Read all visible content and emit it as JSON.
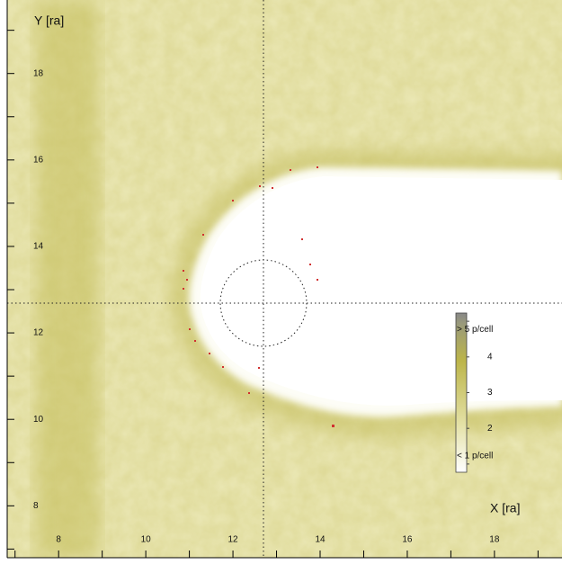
{
  "chart_data": {
    "type": "heatmap",
    "xlabel": "X [ra]",
    "ylabel": "Y [ra]",
    "xlim": [
      6.82,
      19.55
    ],
    "ylim": [
      6.8,
      19.7
    ],
    "xticks": [
      8,
      10,
      12,
      14,
      16,
      18
    ],
    "yticks": [
      8,
      10,
      12,
      14,
      16,
      18
    ],
    "x_minor_ticks": [
      7,
      9,
      11,
      13,
      15,
      17,
      19
    ],
    "y_minor_ticks": [
      7,
      9,
      11,
      13,
      15,
      17,
      19
    ],
    "colorbar": {
      "clim": [
        0.77,
        5.23
      ],
      "ticks": [
        {
          "value": 5,
          "label": "> 5 p/cell"
        },
        4,
        3,
        2,
        {
          "value": 1,
          "label": "< 1 p/cell"
        }
      ]
    }
  }
}
